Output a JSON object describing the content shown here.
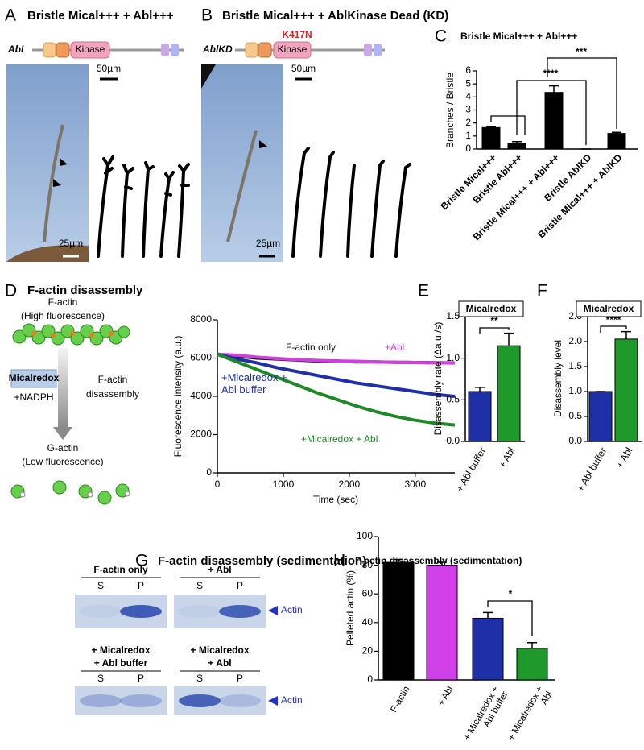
{
  "panels": {
    "A": {
      "letter": "A",
      "title": "Bristle Mical+++ + Abl+++",
      "protein": "Abl",
      "domain": "Kinase",
      "scale_top": "50µm",
      "scale_bottom": "25µm"
    },
    "B": {
      "letter": "B",
      "title": "Bristle Mical+++ + AblKinase Dead (KD)",
      "protein": "AblKD",
      "mutation": "K417N",
      "domain": "Kinase",
      "scale_top": "50µm",
      "scale_bottom": "25µm"
    },
    "C": {
      "letter": "C"
    },
    "D": {
      "letter": "D",
      "title": "F-actin disassembly",
      "top_label": "F-actin",
      "top_sub": "(High fluorescence)",
      "enzyme": "Micalredox",
      "cofactor": "+NADPH",
      "arrow_label": [
        "F-actin",
        "disassembly"
      ],
      "bottom_label": "G-actin",
      "bottom_sub": "(Low fluorescence)"
    },
    "E": {
      "letter": "E"
    },
    "F": {
      "letter": "F"
    },
    "G": {
      "letter": "G",
      "title": "F-actin disassembly (sedimentation)",
      "lanes": [
        {
          "label": [
            "F-actin only"
          ]
        },
        {
          "label": [
            "+ Abl"
          ]
        },
        {
          "label": [
            "+ Micalredox",
            "+ Abl buffer"
          ]
        },
        {
          "label": [
            "+ Micalredox",
            "+ Abl"
          ]
        }
      ],
      "fractions": [
        "S",
        "P"
      ],
      "band_label": "Actin"
    },
    "H": {
      "letter": "H"
    }
  },
  "chart_data": [
    {
      "type": "bar",
      "title": "Bristle Mical+++ + Abl+++",
      "y_label": "Branches / Bristle",
      "categories": [
        "Bristle Mical+++",
        "Bristle Abl+++",
        "Bristle Mical+++ + Abl+++",
        "Bristle AblKD",
        "Bristle Mical+++ + AblKD"
      ],
      "values": [
        1.65,
        0.45,
        4.35,
        0,
        1.2
      ],
      "errors": [
        0.06,
        0.12,
        0.5,
        0,
        0.08
      ],
      "color": "#000000",
      "ylim": [
        0,
        6
      ],
      "yticks": [
        0,
        1,
        2,
        3,
        4,
        5,
        6
      ],
      "annotations": [
        "****",
        "***"
      ]
    },
    {
      "type": "line",
      "x_label": "Time (sec)",
      "y_label": "Fluorescence intensity (a.u.)",
      "x": [
        0,
        300,
        600,
        900,
        1200,
        1500,
        1800,
        2100,
        2400,
        2700,
        3000,
        3300,
        3600
      ],
      "series": [
        {
          "name": "F-actin only",
          "color": "#111111",
          "values": [
            6200,
            6100,
            6000,
            5950,
            5900,
            5850,
            5850,
            5800,
            5800,
            5780,
            5770,
            5760,
            5750
          ]
        },
        {
          "name": "+Abl",
          "color": "#d040e0",
          "values": [
            6200,
            6150,
            6050,
            5980,
            5920,
            5880,
            5850,
            5830,
            5800,
            5780,
            5770,
            5750,
            5740
          ]
        },
        {
          "name": "+Micalredox + Abl buffer",
          "color": "#1f2fa8",
          "values": [
            6200,
            5950,
            5750,
            5500,
            5300,
            5100,
            4900,
            4700,
            4550,
            4400,
            4250,
            4100,
            4000
          ]
        },
        {
          "name": "+Micalredox + Abl",
          "color": "#1f8a25",
          "values": [
            6200,
            5800,
            5400,
            5000,
            4600,
            4200,
            3850,
            3500,
            3200,
            2950,
            2750,
            2600,
            2500
          ]
        }
      ],
      "xlim": [
        0,
        3600
      ],
      "xticks": [
        0,
        1000,
        2000,
        3000
      ],
      "ylim": [
        0,
        8000
      ],
      "yticks": [
        0,
        2000,
        4000,
        6000,
        8000
      ]
    },
    {
      "type": "bar",
      "header": "Micalredox",
      "y_label": "Disassembly rate (Δa.u./s)",
      "categories": [
        "+ Abl buffer",
        "+ Abl"
      ],
      "values": [
        0.6,
        1.15
      ],
      "errors": [
        0.05,
        0.15
      ],
      "colors": [
        "#1f2fa8",
        "#1f9a2a"
      ],
      "ylim": [
        0,
        1.5
      ],
      "yticks": [
        {
          "value": 0,
          "label": "0.0"
        },
        {
          "value": 0.5,
          "label": "0.5"
        },
        {
          "value": 1,
          "label": "1.0"
        },
        {
          "value": 1.5,
          "label": "1.5"
        }
      ],
      "annotations": [
        "**"
      ]
    },
    {
      "type": "bar",
      "header": "Micalredox",
      "y_label": "Disassembly level",
      "categories": [
        "+ Abl buffer",
        "+ Abl"
      ],
      "values": [
        1.0,
        2.05
      ],
      "errors": [
        0,
        0.15
      ],
      "colors": [
        "#1f2fa8",
        "#1f9a2a"
      ],
      "ylim": [
        0,
        2.5
      ],
      "yticks": [
        {
          "value": 0,
          "label": "0.0"
        },
        {
          "value": 0.5,
          "label": "0.5"
        },
        {
          "value": 1,
          "label": "1.0"
        },
        {
          "value": 1.5,
          "label": "1.5"
        },
        {
          "value": 2,
          "label": "2.0"
        },
        {
          "value": 2.5,
          "label": "2.5"
        }
      ],
      "annotations": [
        "****"
      ]
    },
    {
      "type": "bar",
      "title": "F-actin disassembly (sedimentation)",
      "y_label": "Pelleted actin (%)",
      "categories": [
        "F-actin",
        "+ Abl",
        "+ Micalredox + Abl buffer",
        "+ Micalredox + Abl"
      ],
      "values": [
        82,
        80,
        43,
        22
      ],
      "errors": [
        2,
        2,
        4,
        4
      ],
      "colors": [
        "#000000",
        "#d040e8",
        "#1f2fa8",
        "#1f9a2a"
      ],
      "ylim": [
        0,
        100
      ],
      "yticks": [
        0,
        20,
        40,
        60,
        80,
        100
      ],
      "annotations": [
        "*"
      ]
    }
  ]
}
